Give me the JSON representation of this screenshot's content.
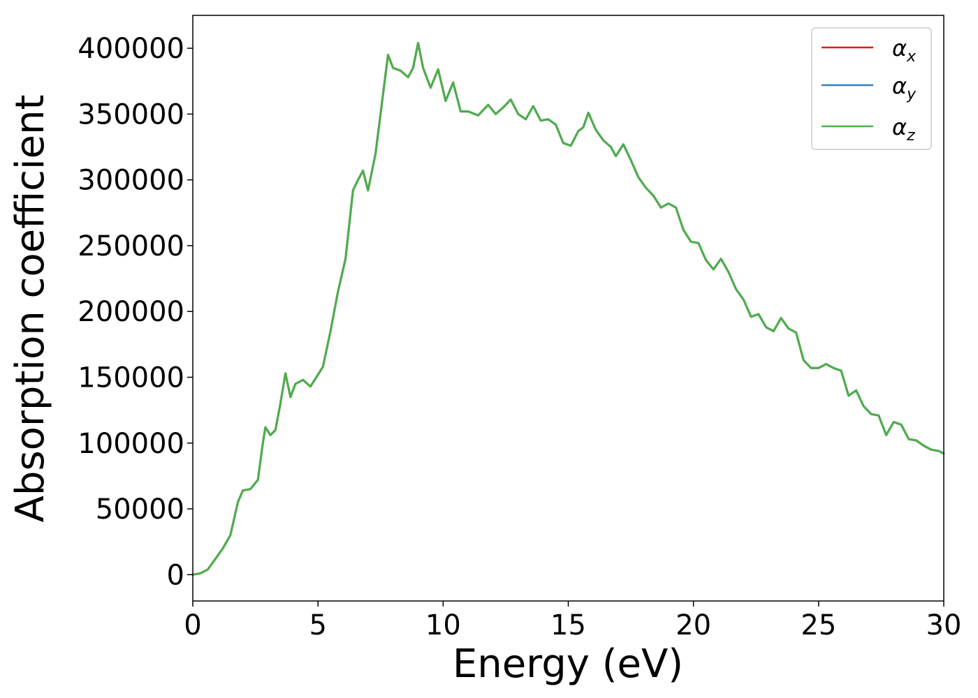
{
  "chart_data": {
    "type": "line",
    "title": "",
    "xlabel": "Energy (eV)",
    "ylabel": "Absorption coefficient",
    "xlim": [
      0,
      30
    ],
    "ylim": [
      -20000,
      425000
    ],
    "xticks": [
      0,
      5,
      10,
      15,
      20,
      25,
      30
    ],
    "yticks": [
      0,
      50000,
      100000,
      150000,
      200000,
      250000,
      300000,
      350000,
      400000
    ],
    "grid": false,
    "legend_position": "top-right",
    "legend_labels": [
      {
        "symbol": "α",
        "sub": "x"
      },
      {
        "symbol": "α",
        "sub": "y"
      },
      {
        "symbol": "α",
        "sub": "z"
      }
    ],
    "x": [
      0,
      0.3,
      0.6,
      0.9,
      1.2,
      1.5,
      1.8,
      2.0,
      2.3,
      2.6,
      2.8,
      2.9,
      3.1,
      3.3,
      3.5,
      3.7,
      3.9,
      4.1,
      4.4,
      4.7,
      4.9,
      5.2,
      5.5,
      5.8,
      6.1,
      6.4,
      6.6,
      6.8,
      7.0,
      7.3,
      7.6,
      7.8,
      8.0,
      8.3,
      8.6,
      8.8,
      9.0,
      9.2,
      9.5,
      9.8,
      10.1,
      10.4,
      10.7,
      11.0,
      11.4,
      11.8,
      12.1,
      12.4,
      12.7,
      13.0,
      13.3,
      13.6,
      13.9,
      14.2,
      14.5,
      14.8,
      15.1,
      15.4,
      15.6,
      15.8,
      16.1,
      16.4,
      16.7,
      16.9,
      17.2,
      17.5,
      17.8,
      18.1,
      18.4,
      18.7,
      19.0,
      19.3,
      19.6,
      19.9,
      20.2,
      20.5,
      20.8,
      21.1,
      21.4,
      21.7,
      22.0,
      22.3,
      22.6,
      22.9,
      23.2,
      23.5,
      23.8,
      24.1,
      24.4,
      24.7,
      25.0,
      25.3,
      25.6,
      25.9,
      26.2,
      26.5,
      26.8,
      27.1,
      27.4,
      27.7,
      28.0,
      28.3,
      28.6,
      28.9,
      29.2,
      29.5,
      29.8,
      30.0
    ],
    "series": [
      {
        "name": "",
        "color": "#e41a1c",
        "values": [
          0,
          1000,
          4000,
          12000,
          20000,
          30000,
          55000,
          64000,
          65000,
          72000,
          100000,
          112000,
          106000,
          110000,
          130000,
          153000,
          135000,
          145000,
          148000,
          143000,
          149000,
          158000,
          185000,
          215000,
          240000,
          292000,
          300000,
          307000,
          292000,
          320000,
          365000,
          395000,
          385000,
          383000,
          378000,
          385000,
          404000,
          385000,
          370000,
          384000,
          360000,
          374000,
          352000,
          352000,
          349000,
          357000,
          350000,
          355000,
          361000,
          350000,
          346000,
          356000,
          345000,
          346000,
          342000,
          328000,
          326000,
          337000,
          340000,
          351000,
          338000,
          330000,
          325000,
          318000,
          327000,
          315000,
          302000,
          294000,
          288000,
          279000,
          282000,
          279000,
          262000,
          253000,
          252000,
          239000,
          232000,
          240000,
          230000,
          217000,
          209000,
          196000,
          198000,
          188000,
          185000,
          195000,
          187000,
          184000,
          163000,
          157000,
          157000,
          160000,
          157000,
          155000,
          136000,
          140000,
          128000,
          122000,
          121000,
          106000,
          116000,
          114000,
          103000,
          102000,
          98000,
          95000,
          94000,
          92000
        ]
      },
      {
        "name": "",
        "color": "#377eb8",
        "values": [
          0,
          1000,
          4000,
          12000,
          20000,
          30000,
          55000,
          64000,
          65000,
          72000,
          100000,
          112000,
          106000,
          110000,
          130000,
          153000,
          135000,
          145000,
          148000,
          143000,
          149000,
          158000,
          185000,
          215000,
          240000,
          292000,
          300000,
          307000,
          292000,
          320000,
          365000,
          395000,
          385000,
          383000,
          378000,
          385000,
          404000,
          385000,
          370000,
          384000,
          360000,
          374000,
          352000,
          352000,
          349000,
          357000,
          350000,
          355000,
          361000,
          350000,
          346000,
          356000,
          345000,
          346000,
          342000,
          328000,
          326000,
          337000,
          340000,
          351000,
          338000,
          330000,
          325000,
          318000,
          327000,
          315000,
          302000,
          294000,
          288000,
          279000,
          282000,
          279000,
          262000,
          253000,
          252000,
          239000,
          232000,
          240000,
          230000,
          217000,
          209000,
          196000,
          198000,
          188000,
          185000,
          195000,
          187000,
          184000,
          163000,
          157000,
          157000,
          160000,
          157000,
          155000,
          136000,
          140000,
          128000,
          122000,
          121000,
          106000,
          116000,
          114000,
          103000,
          102000,
          98000,
          95000,
          94000,
          92000
        ]
      },
      {
        "name": "",
        "color": "#4daf4a",
        "values": [
          0,
          1000,
          4000,
          12000,
          20000,
          30000,
          55000,
          64000,
          65000,
          72000,
          100000,
          112000,
          106000,
          110000,
          130000,
          153000,
          135000,
          145000,
          148000,
          143000,
          149000,
          158000,
          185000,
          215000,
          240000,
          292000,
          300000,
          307000,
          292000,
          320000,
          365000,
          395000,
          385000,
          383000,
          378000,
          385000,
          404000,
          385000,
          370000,
          384000,
          360000,
          374000,
          352000,
          352000,
          349000,
          357000,
          350000,
          355000,
          361000,
          350000,
          346000,
          356000,
          345000,
          346000,
          342000,
          328000,
          326000,
          337000,
          340000,
          351000,
          338000,
          330000,
          325000,
          318000,
          327000,
          315000,
          302000,
          294000,
          288000,
          279000,
          282000,
          279000,
          262000,
          253000,
          252000,
          239000,
          232000,
          240000,
          230000,
          217000,
          209000,
          196000,
          198000,
          188000,
          185000,
          195000,
          187000,
          184000,
          163000,
          157000,
          157000,
          160000,
          157000,
          155000,
          136000,
          140000,
          128000,
          122000,
          121000,
          106000,
          116000,
          114000,
          103000,
          102000,
          98000,
          95000,
          94000,
          92000
        ]
      }
    ]
  }
}
